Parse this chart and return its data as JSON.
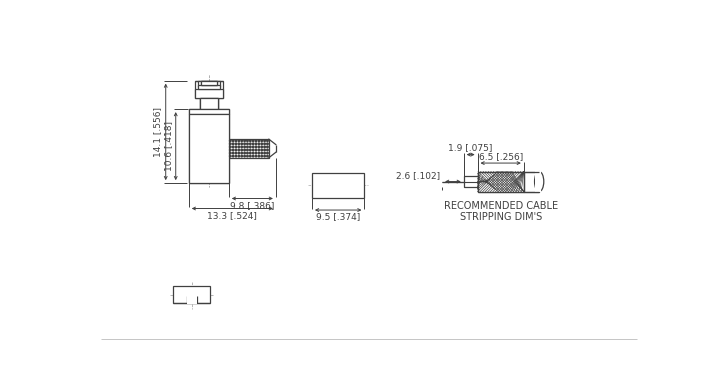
{
  "bg_color": "#ffffff",
  "line_color": "#404040",
  "dim_color": "#404040",
  "lw": 0.9,
  "dim_lw": 0.7,
  "font_size": 6.5,
  "dims": {
    "h_total": "14.1 [.556]",
    "h_body": "10.6 [.418]",
    "w_knurl": "9.8 [.386]",
    "w_total": "13.3 [.524]",
    "cable_len": "9.5 [.374]",
    "cable_gap": "2.6 [.102]",
    "strip1": "1.9 [.075]",
    "strip2": "6.5 [.256]"
  },
  "label_rec_cable": "RECOMMENDED CABLE\nSTRIPPING DIM'S"
}
